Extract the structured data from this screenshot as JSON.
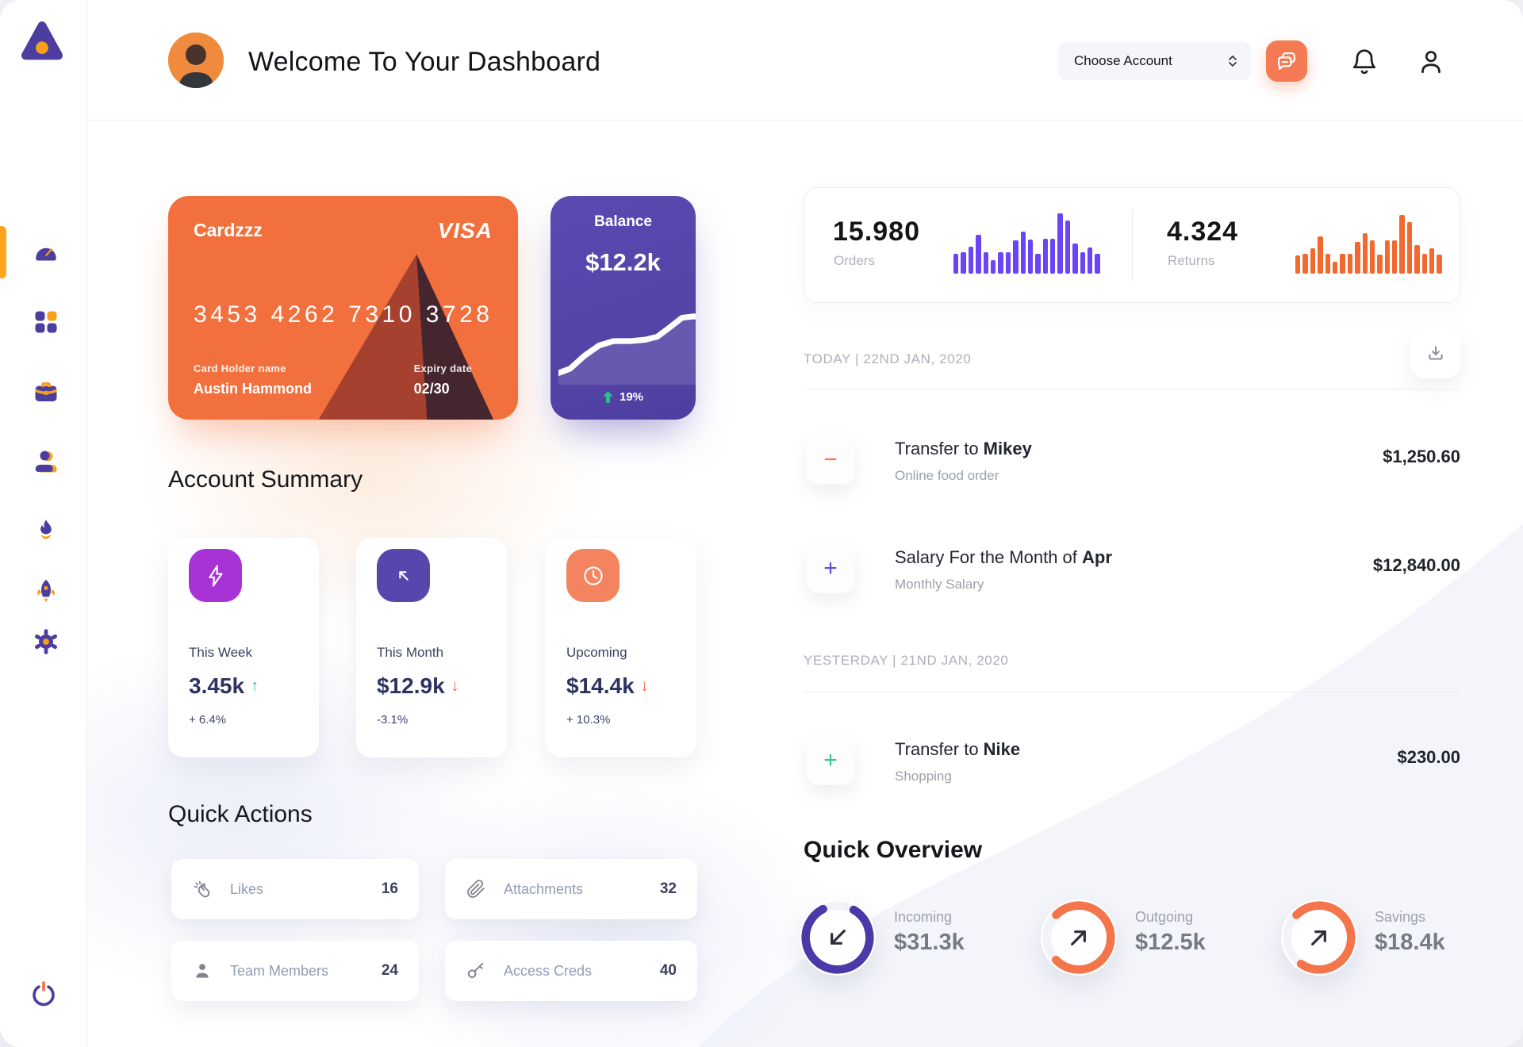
{
  "colors": {
    "accent_orange": "#F1703D",
    "accent_purple": "#5A4BB2",
    "sidebar_icon_purple": "#4B3E9E",
    "sidebar_icon_orange": "#F8A01C",
    "active_indicator": "#FFA41B",
    "green": "#2BBD8E",
    "red": "#EE6352",
    "orders_bar": "#6B45F5",
    "returns_bar": "#F2692F"
  },
  "header": {
    "title": "Welcome To Your Dashboard",
    "account_selector": {
      "label": "Choose Account"
    }
  },
  "credit_card": {
    "name": "Cardzzz",
    "brand": "VISA",
    "number": "3453 4262 7310 3728",
    "holder_label": "Card Holder name",
    "holder_name": "Austin Hammond",
    "expiry_label": "Expiry date",
    "expiry": "02/30"
  },
  "balance_card": {
    "title": "Balance",
    "amount": "$12.2k",
    "change": "19%",
    "trend": "up",
    "sparkline": [
      [
        0,
        52
      ],
      [
        8,
        49
      ],
      [
        18,
        40
      ],
      [
        28,
        33
      ],
      [
        38,
        30
      ],
      [
        50,
        30
      ],
      [
        60,
        29
      ],
      [
        68,
        27
      ],
      [
        76,
        21
      ],
      [
        85,
        14
      ],
      [
        93,
        13
      ],
      [
        100,
        14
      ]
    ]
  },
  "account_summary": {
    "title": "Account Summary",
    "cards": [
      {
        "label": "This Week",
        "value": "3.45k",
        "direction": "up",
        "change": "+ 6.4%",
        "icon": "lightning-icon",
        "tile_color": "#A733D6"
      },
      {
        "label": "This Month",
        "value": "$12.9k",
        "direction": "down",
        "change": "-3.1%",
        "icon": "arrow-trend-icon",
        "tile_color": "#5747AD"
      },
      {
        "label": "Upcoming",
        "value": "$14.4k",
        "direction": "down",
        "change": "+ 10.3%",
        "icon": "clock-icon",
        "tile_color": "#F4845F"
      }
    ]
  },
  "quick_actions": {
    "title": "Quick Actions",
    "items": [
      {
        "label": "Likes",
        "count": "16",
        "icon": "clap-icon"
      },
      {
        "label": "Attachments",
        "count": "32",
        "icon": "paperclip-icon"
      },
      {
        "label": "Team Members",
        "count": "24",
        "icon": "member-icon"
      },
      {
        "label": "Access Creds",
        "count": "40",
        "icon": "key-icon"
      }
    ]
  },
  "stats": {
    "orders": {
      "value": "15.980",
      "label": "Orders",
      "bar_color": "#6B45F5",
      "bars": [
        33,
        36,
        45,
        65,
        35,
        22,
        36,
        36,
        55,
        70,
        57,
        33,
        58,
        58,
        100,
        88,
        50,
        35,
        44,
        33
      ]
    },
    "returns": {
      "value": "4.324",
      "label": "Returns",
      "bar_color": "#F2692F",
      "bars": [
        30,
        33,
        42,
        62,
        33,
        20,
        33,
        33,
        52,
        67,
        55,
        31,
        55,
        55,
        97,
        85,
        47,
        33,
        42,
        31
      ]
    }
  },
  "transactions": {
    "groups": [
      {
        "date_label": "TODAY | 22ND JAN, 2020",
        "items": [
          {
            "sign": "minus",
            "sign_color": "#F4754C",
            "title_prefix": "Transfer to ",
            "title_bold": "Mikey",
            "subtitle": "Online food order",
            "amount": "$1,250.60"
          },
          {
            "sign": "plus",
            "sign_color": "#5B4FD1",
            "title_prefix": "Salary For the Month of ",
            "title_bold": "Apr",
            "subtitle": "Monthly Salary",
            "amount": "$12,840.00"
          }
        ]
      },
      {
        "date_label": "YESTERDAY | 21ND JAN, 2020",
        "items": [
          {
            "sign": "plus",
            "sign_color": "#35C796",
            "title_prefix": "Transfer to ",
            "title_bold": "Nike",
            "subtitle": "Shopping",
            "amount": "$230.00"
          }
        ]
      }
    ]
  },
  "quick_overview": {
    "title": "Quick Overview",
    "items": [
      {
        "label": "Incoming",
        "amount": "$31.3k",
        "ring_color": "#4A3AA8",
        "percent": 84,
        "start_angle": 30,
        "arrow": "down-left"
      },
      {
        "label": "Outgoing",
        "amount": "$12.5k",
        "ring_color": "#F4754C",
        "percent": 75,
        "start_angle": 315,
        "arrow": "up-right"
      },
      {
        "label": "Savings",
        "amount": "$18.4k",
        "ring_color": "#F4754C",
        "percent": 72,
        "start_angle": 315,
        "arrow": "up-right"
      }
    ]
  }
}
